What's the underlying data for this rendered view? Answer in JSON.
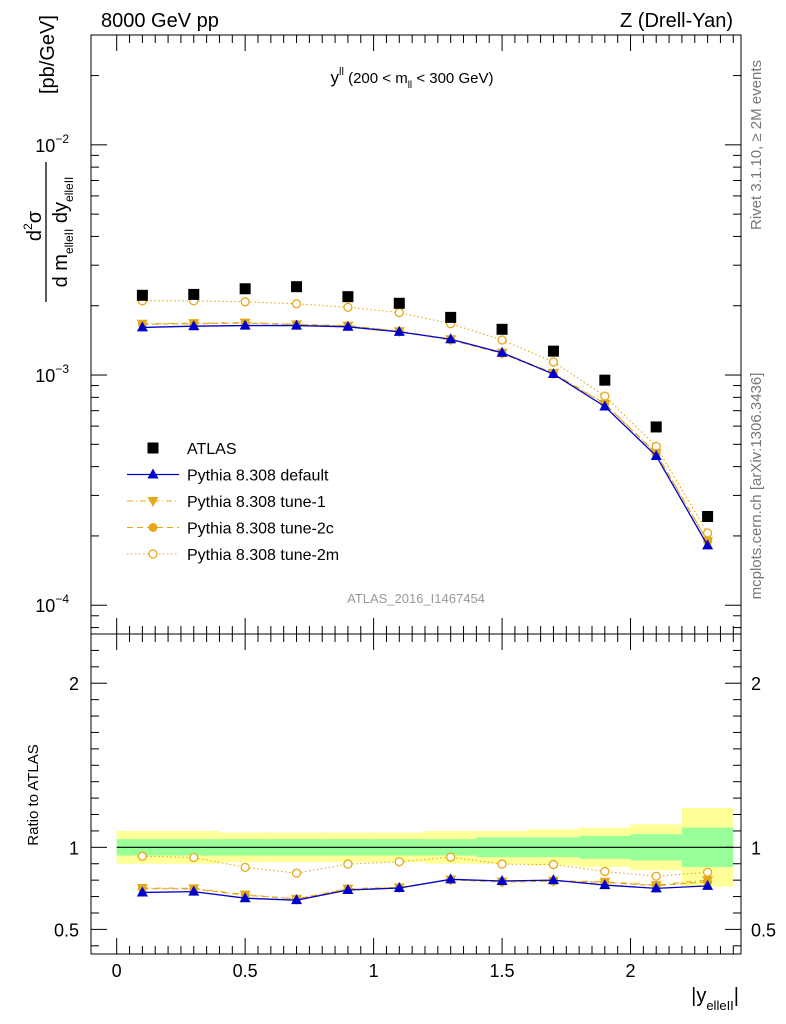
{
  "header": {
    "left": "8000 GeV pp",
    "right": "Z (Drell-Yan)"
  },
  "plot_title": {
    "main": "y",
    "main_sup": "ll",
    "range_pre": " (200 < m",
    "range_sub": "ll",
    "range_post": " < 300 GeV)"
  },
  "ylabel": {
    "numer_d": "d",
    "numer_sup": "2",
    "numer_sigma": "σ",
    "denom_pre": "d m",
    "denom_sub1": "elleII",
    "denom_mid": " dy",
    "denom_sub2": "elleII",
    "units": "[pb/GeV]"
  },
  "side_labels": {
    "rivet": "Rivet 3.1.10, ≥ 2M events",
    "mcplots": "mcplots.cern.ch [arXiv:1306.3436]"
  },
  "watermark": "ATLAS_2016_I1467454",
  "ratio_ylabel": "Ratio to ATLAS",
  "xlabel": {
    "pre": "|y",
    "sub": "elleII",
    "post": "|"
  },
  "legend": [
    {
      "label": "ATLAS"
    },
    {
      "label": "Pythia 8.308 default"
    },
    {
      "label": "Pythia 8.308 tune-1"
    },
    {
      "label": "Pythia 8.308 tune-2c"
    },
    {
      "label": "Pythia 8.308 tune-2m"
    }
  ],
  "colors": {
    "atlas": "#000000",
    "default": "#0000cc",
    "tune1": "#e6a817",
    "tune2c": "#e6a817",
    "tune2m": "#e6a817",
    "band_inner": "#99ff99",
    "band_outer": "#ffff99"
  },
  "chart_data": [
    {
      "type": "scatter",
      "scale_y": "log",
      "xlim": [
        -0.1,
        2.43
      ],
      "ylim": [
        7.5e-05,
        0.03
      ],
      "x_ticks": [
        "0",
        "0.5",
        "1",
        "1.5",
        "2"
      ],
      "y_tick_labels": [
        {
          "base": "10",
          "exp": "−4"
        },
        {
          "base": "10",
          "exp": "−3"
        },
        {
          "base": "10",
          "exp": "−2"
        }
      ],
      "x": [
        0.1,
        0.3,
        0.5,
        0.7,
        0.9,
        1.1,
        1.3,
        1.5,
        1.7,
        1.9,
        2.1,
        2.3
      ],
      "series": [
        {
          "name": "ATLAS",
          "values": [
            0.00222,
            0.00224,
            0.00237,
            0.00242,
            0.00219,
            0.00205,
            0.00178,
            0.00158,
            0.00127,
            0.00095,
            0.000595,
            0.000243
          ]
        },
        {
          "name": "Pythia 8.308 default",
          "values": [
            0.00161,
            0.00163,
            0.00164,
            0.00164,
            0.00162,
            0.00154,
            0.00143,
            0.00125,
            0.00101,
            0.00073,
            0.000445,
            0.000182
          ]
        },
        {
          "name": "Pythia 8.308 tune-1",
          "values": [
            0.00167,
            0.00168,
            0.00169,
            0.00166,
            0.00164,
            0.00155,
            0.00143,
            0.00125,
            0.00102,
            0.00075,
            0.000458,
            0.00019
          ]
        },
        {
          "name": "Pythia 8.308 tune-2c",
          "values": [
            0.00166,
            0.00167,
            0.00168,
            0.00166,
            0.00163,
            0.00155,
            0.00142,
            0.00124,
            0.00101,
            0.00075,
            0.000455,
            0.00019
          ]
        },
        {
          "name": "Pythia 8.308 tune-2m",
          "values": [
            0.0021,
            0.0021,
            0.00208,
            0.00204,
            0.00197,
            0.00187,
            0.00167,
            0.00142,
            0.00114,
            0.00081,
            0.00049,
            0.000206
          ]
        }
      ]
    },
    {
      "type": "scatter",
      "xlim": [
        -0.1,
        2.43
      ],
      "ylim": [
        0.35,
        2.3
      ],
      "x_ticks": [
        "0",
        "0.5",
        "1",
        "1.5",
        "2"
      ],
      "y_ticks": [
        "0.5",
        "1",
        "2"
      ],
      "x": [
        0.1,
        0.3,
        0.5,
        0.7,
        0.9,
        1.1,
        1.3,
        1.5,
        1.7,
        1.9,
        2.1,
        2.3
      ],
      "bins": [
        0,
        0.2,
        0.4,
        0.6,
        0.8,
        1.0,
        1.2,
        1.4,
        1.6,
        1.8,
        2.0,
        2.2,
        2.4
      ],
      "band_inner": [
        0.05,
        0.05,
        0.05,
        0.05,
        0.05,
        0.05,
        0.05,
        0.06,
        0.06,
        0.07,
        0.08,
        0.12
      ],
      "band_outer": [
        0.1,
        0.1,
        0.09,
        0.09,
        0.09,
        0.09,
        0.1,
        0.1,
        0.11,
        0.12,
        0.14,
        0.24
      ],
      "series": [
        {
          "name": "Pythia 8.308 default",
          "values": [
            0.725,
            0.73,
            0.69,
            0.678,
            0.74,
            0.752,
            0.805,
            0.795,
            0.8,
            0.77,
            0.75,
            0.765
          ]
        },
        {
          "name": "Pythia 8.308 tune-1",
          "values": [
            0.752,
            0.75,
            0.712,
            0.686,
            0.748,
            0.756,
            0.804,
            0.792,
            0.796,
            0.79,
            0.77,
            0.8
          ]
        },
        {
          "name": "Pythia 8.308 tune-2c",
          "values": [
            0.748,
            0.746,
            0.708,
            0.686,
            0.744,
            0.754,
            0.802,
            0.788,
            0.794,
            0.786,
            0.766,
            0.79
          ]
        },
        {
          "name": "Pythia 8.308 tune-2m",
          "values": [
            0.946,
            0.938,
            0.878,
            0.843,
            0.898,
            0.912,
            0.94,
            0.898,
            0.895,
            0.853,
            0.824,
            0.848
          ]
        }
      ]
    }
  ]
}
